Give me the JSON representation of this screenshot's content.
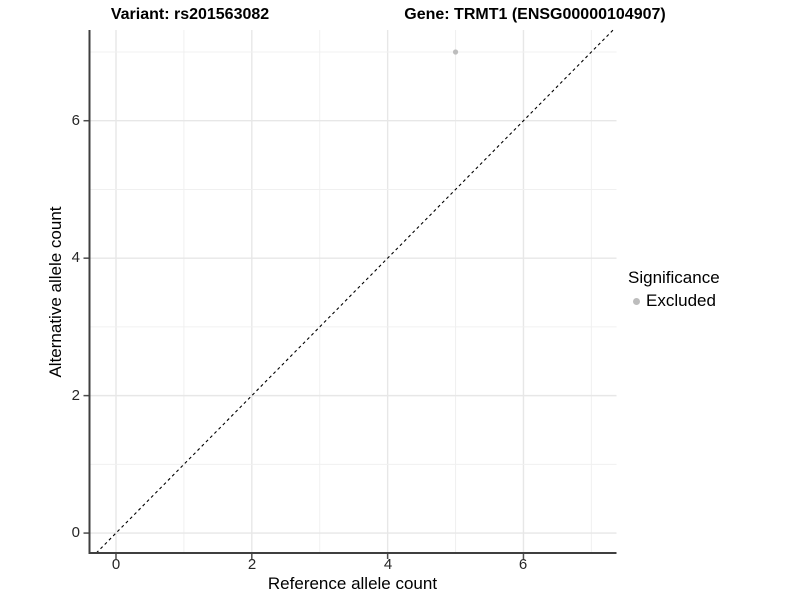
{
  "header": {
    "variant_title": "Variant: rs201563082",
    "gene_title": "Gene: TRMT1 (ENSG00000104907)"
  },
  "axes": {
    "x": {
      "label": "Reference allele count",
      "ticks": [
        "0",
        "2",
        "4",
        "6"
      ]
    },
    "y": {
      "label": "Alternative allele count",
      "ticks": [
        "0",
        "2",
        "4",
        "6"
      ]
    }
  },
  "legend": {
    "title": "Significance",
    "items": [
      {
        "label": "Excluded",
        "color": "#bdbdbd"
      }
    ]
  },
  "chart_data": {
    "type": "scatter",
    "title": "",
    "xlabel": "Reference allele count",
    "ylabel": "Alternative allele count",
    "xlim": [
      -0.39,
      7.37
    ],
    "ylim": [
      -0.29,
      7.32
    ],
    "x_major_ticks": [
      0,
      2,
      4,
      6
    ],
    "y_major_ticks": [
      0,
      2,
      4,
      6
    ],
    "grid_values_x": [
      0,
      1,
      2,
      3,
      4,
      5,
      6,
      7
    ],
    "grid_values_y": [
      0,
      1,
      2,
      3,
      4,
      5,
      6,
      7
    ],
    "grid": true,
    "legend_position": "right",
    "series": [
      {
        "name": "Excluded",
        "color": "#bdbdbd",
        "points": [
          {
            "x": 5,
            "y": 7
          }
        ]
      }
    ],
    "reference_line": {
      "type": "identity",
      "style": "dashed",
      "color": "#000000"
    }
  },
  "colors": {
    "background": "#ffffff",
    "grid_major": "#e7e7e7",
    "grid_minor": "#f0f0f0",
    "axis_line": "#3f3f3f",
    "tick_mark": "#4d4d4d",
    "point": "#bdbdbd"
  }
}
